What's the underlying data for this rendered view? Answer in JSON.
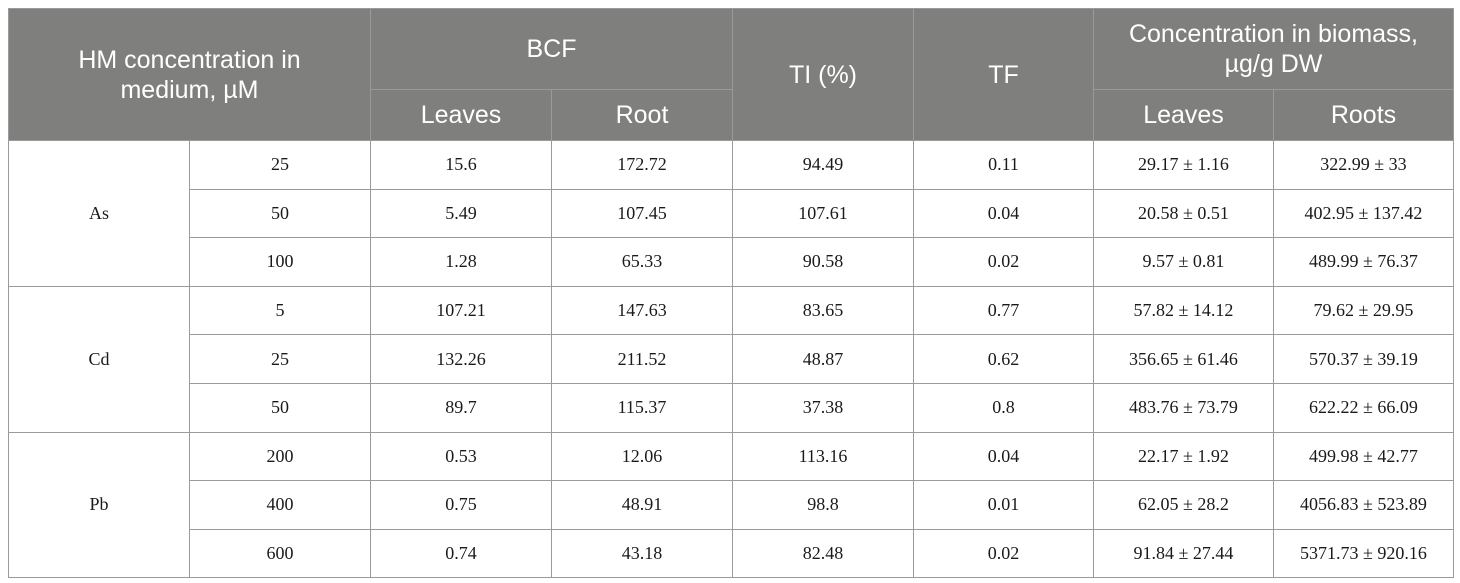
{
  "header": {
    "hm_concentration": "HM concentration in medium, µM",
    "bcf": "BCF",
    "ti": "TI (%)",
    "tf": "TF",
    "biomass": "Concentration in biomass, µg/g DW",
    "bcf_leaves": "Leaves",
    "bcf_root": "Root",
    "biomass_leaves": "Leaves",
    "biomass_roots": "Roots"
  },
  "groups": [
    {
      "metal": "As",
      "rows": [
        {
          "conc": "25",
          "bcf_leaves": "15.6",
          "bcf_root": "172.72",
          "ti": "94.49",
          "tf": "0.11",
          "bio_leaves": "29.17 ± 1.16",
          "bio_roots": "322.99 ± 33"
        },
        {
          "conc": "50",
          "bcf_leaves": "5.49",
          "bcf_root": "107.45",
          "ti": "107.61",
          "tf": "0.04",
          "bio_leaves": "20.58 ± 0.51",
          "bio_roots": "402.95 ± 137.42"
        },
        {
          "conc": "100",
          "bcf_leaves": "1.28",
          "bcf_root": "65.33",
          "ti": "90.58",
          "tf": "0.02",
          "bio_leaves": "9.57 ± 0.81",
          "bio_roots": "489.99 ± 76.37"
        }
      ]
    },
    {
      "metal": "Cd",
      "rows": [
        {
          "conc": "5",
          "bcf_leaves": "107.21",
          "bcf_root": "147.63",
          "ti": "83.65",
          "tf": "0.77",
          "bio_leaves": "57.82 ± 14.12",
          "bio_roots": "79.62 ± 29.95"
        },
        {
          "conc": "25",
          "bcf_leaves": "132.26",
          "bcf_root": "211.52",
          "ti": "48.87",
          "tf": "0.62",
          "bio_leaves": "356.65 ± 61.46",
          "bio_roots": "570.37 ± 39.19"
        },
        {
          "conc": "50",
          "bcf_leaves": "89.7",
          "bcf_root": "115.37",
          "ti": "37.38",
          "tf": "0.8",
          "bio_leaves": "483.76 ± 73.79",
          "bio_roots": "622.22 ± 66.09"
        }
      ]
    },
    {
      "metal": "Pb",
      "rows": [
        {
          "conc": "200",
          "bcf_leaves": "0.53",
          "bcf_root": "12.06",
          "ti": "113.16",
          "tf": "0.04",
          "bio_leaves": "22.17 ± 1.92",
          "bio_roots": "499.98 ± 42.77"
        },
        {
          "conc": "400",
          "bcf_leaves": "0.75",
          "bcf_root": "48.91",
          "ti": "98.8",
          "tf": "0.01",
          "bio_leaves": "62.05 ± 28.2",
          "bio_roots": "4056.83 ± 523.89"
        },
        {
          "conc": "600",
          "bcf_leaves": "0.74",
          "bcf_root": "43.18",
          "ti": "82.48",
          "tf": "0.02",
          "bio_leaves": "91.84 ± 27.44",
          "bio_roots": "5371.73 ± 920.16"
        }
      ]
    }
  ]
}
